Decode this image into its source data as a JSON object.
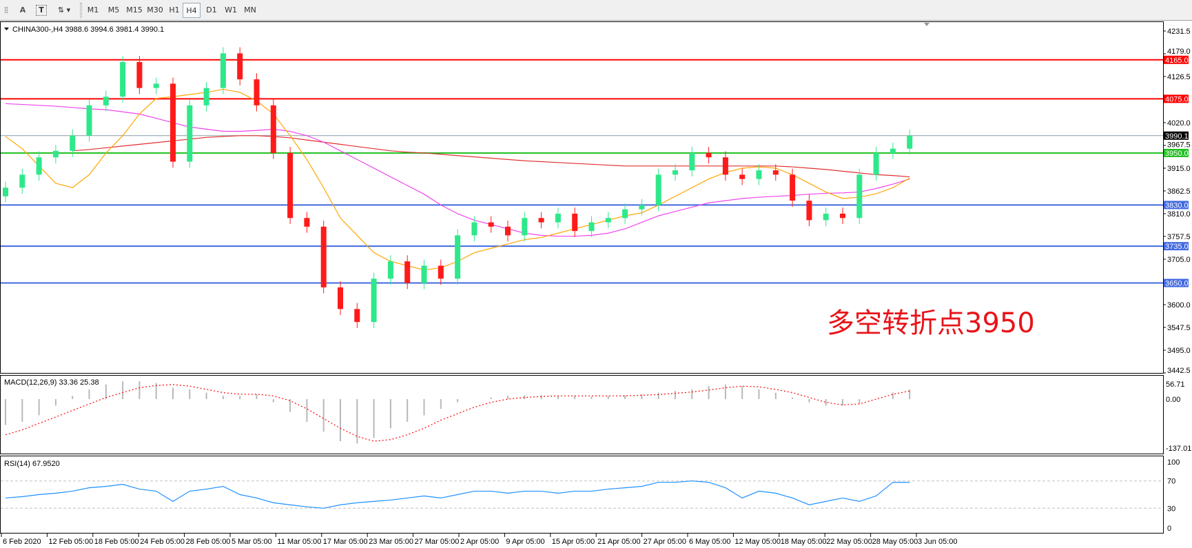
{
  "toolbar": {
    "icons": [
      "grid-icon",
      "text-icon",
      "text-label-icon",
      "arrows-icon"
    ],
    "text_tool": "A",
    "timeframes": [
      "M1",
      "M5",
      "M15",
      "M30",
      "H1",
      "H4",
      "D1",
      "W1",
      "MN"
    ],
    "active": "H4"
  },
  "chart_data": [
    {
      "type": "candlestick",
      "title": "CHINA300-,H4  3988.6 3994.6 3981.4 3990.1",
      "symbol": "CHINA300-",
      "timeframe": "H4",
      "last": {
        "open": 3988.6,
        "high": 3994.6,
        "low": 3981.4,
        "close": 3990.1
      },
      "ylim": [
        3442.5,
        4231.5
      ],
      "yticks": [
        "4231.5",
        "4179.0",
        "4126.5",
        "4020.0",
        "3967.5",
        "3915.0",
        "3862.5",
        "3810.0",
        "3757.5",
        "3705.0",
        "3600.0",
        "3547.5",
        "3495.0",
        "3442.5"
      ],
      "levels": [
        {
          "value": "4165.0",
          "color": "#ff0000"
        },
        {
          "value": "4075.0",
          "color": "#ff0000"
        },
        {
          "value": "3990.1",
          "color": "#000000",
          "line": "#8a9aa6"
        },
        {
          "value": "3950.0",
          "color": "#22c022"
        },
        {
          "value": "3830.0",
          "color": "#4169e1"
        },
        {
          "value": "3735.0",
          "color": "#4169e1"
        },
        {
          "value": "3650.0",
          "color": "#4169e1"
        }
      ],
      "colors": {
        "bull": "#2ee88a",
        "bear": "#ff1a1a",
        "ma_fast": "#ffa500",
        "ma_mid": "#ee44ee",
        "ma_slow": "#e03030"
      },
      "closes": [
        3870,
        3900,
        3940,
        3955,
        3990,
        4060,
        4080,
        4160,
        4100,
        4110,
        3930,
        4060,
        4100,
        4180,
        4120,
        4060,
        3950,
        3800,
        3780,
        3640,
        3590,
        3560,
        3660,
        3700,
        3650,
        3690,
        3660,
        3760,
        3790,
        3780,
        3760,
        3800,
        3790,
        3810,
        3770,
        3790,
        3800,
        3820,
        3830,
        3900,
        3910,
        3950,
        3940,
        3900,
        3890,
        3910,
        3900,
        3840,
        3795,
        3810,
        3800,
        3900,
        3950,
        3960,
        3990
      ],
      "ma_fast": [
        3988,
        3960,
        3920,
        3880,
        3870,
        3900,
        3950,
        3990,
        4040,
        4076,
        4080,
        4085,
        4090,
        4097,
        4090,
        4070,
        4040,
        3990,
        3935,
        3870,
        3800,
        3760,
        3720,
        3700,
        3690,
        3680,
        3685,
        3700,
        3720,
        3730,
        3740,
        3750,
        3755,
        3765,
        3775,
        3785,
        3795,
        3805,
        3812,
        3830,
        3850,
        3870,
        3890,
        3905,
        3915,
        3918,
        3915,
        3900,
        3880,
        3860,
        3845,
        3848,
        3856,
        3870,
        3892
      ],
      "ma_mid": [
        4064,
        4062,
        4060,
        4058,
        4055,
        4052,
        4050,
        4045,
        4040,
        4030,
        4020,
        4010,
        4005,
        4000,
        4000,
        4002,
        4005,
        4000,
        3990,
        3975,
        3955,
        3935,
        3915,
        3895,
        3875,
        3855,
        3830,
        3810,
        3795,
        3785,
        3775,
        3765,
        3760,
        3758,
        3758,
        3760,
        3765,
        3775,
        3790,
        3805,
        3815,
        3825,
        3835,
        3840,
        3845,
        3848,
        3850,
        3852,
        3855,
        3857,
        3858,
        3860,
        3868,
        3878,
        3890
      ],
      "ma_slow": [
        null,
        null,
        null,
        null,
        3955,
        3958,
        3962,
        3966,
        3970,
        3974,
        3978,
        3982,
        3986,
        3988,
        3990,
        3990,
        3988,
        3985,
        3980,
        3975,
        3970,
        3965,
        3960,
        3955,
        3952,
        3950,
        3947,
        3944,
        3941,
        3938,
        3935,
        3932,
        3930,
        3928,
        3926,
        3924,
        3922,
        3920,
        3920,
        3920,
        3920,
        3920,
        3920,
        3920,
        3920,
        3920,
        3920,
        3918,
        3915,
        3912,
        3908,
        3904,
        3900,
        3898,
        3895
      ],
      "xticks": [
        "6 Feb 2020",
        "12 Feb 05:00",
        "18 Feb 05:00",
        "24 Feb 05:00",
        "28 Feb 05:00",
        "5 Mar 05:00",
        "11 Mar 05:00",
        "17 Mar 05:00",
        "23 Mar 05:00",
        "27 Mar 05:00",
        "2 Apr 05:00",
        "9 Apr 05:00",
        "15 Apr 05:00",
        "21 Apr 05:00",
        "27 Apr 05:00",
        "6 May 05:00",
        "12 May 05:00",
        "18 May 05:00",
        "22 May 05:00",
        "28 May 05:00",
        "3 Jun 05:00"
      ],
      "annotation": "多空转折点3950"
    },
    {
      "type": "bar",
      "title": "MACD(12,26,9) 33.36 25.38",
      "yticks": [
        "56.71",
        "0.00",
        "-137.01"
      ],
      "histogram": [
        -80,
        -70,
        -50,
        -20,
        10,
        30,
        45,
        55,
        55,
        50,
        35,
        30,
        20,
        10,
        10,
        15,
        -10,
        -40,
        -70,
        -100,
        -130,
        -137,
        -120,
        -90,
        -70,
        -50,
        -30,
        -10,
        0,
        5,
        10,
        12,
        12,
        10,
        10,
        8,
        10,
        12,
        15,
        20,
        25,
        30,
        40,
        45,
        40,
        30,
        20,
        5,
        -10,
        -20,
        -20,
        -15,
        0,
        20,
        30
      ],
      "signal": [
        -110,
        -95,
        -75,
        -55,
        -35,
        -15,
        5,
        20,
        35,
        42,
        45,
        40,
        30,
        20,
        15,
        15,
        10,
        -5,
        -30,
        -60,
        -90,
        -115,
        -130,
        -125,
        -110,
        -90,
        -65,
        -45,
        -25,
        -10,
        0,
        5,
        8,
        10,
        10,
        10,
        10,
        10,
        12,
        14,
        18,
        22,
        28,
        35,
        40,
        38,
        30,
        20,
        5,
        -10,
        -18,
        -15,
        0,
        15,
        25
      ]
    },
    {
      "type": "line",
      "title": "RSI(14) 67.9520",
      "yticks": [
        "100",
        "70",
        "30",
        "0"
      ],
      "ylim": [
        0,
        100
      ],
      "values": [
        45,
        47,
        50,
        52,
        55,
        60,
        62,
        65,
        58,
        55,
        40,
        55,
        58,
        62,
        50,
        45,
        38,
        35,
        32,
        30,
        35,
        38,
        40,
        42,
        45,
        48,
        45,
        50,
        55,
        55,
        52,
        55,
        55,
        52,
        55,
        55,
        58,
        60,
        62,
        68,
        68,
        70,
        68,
        60,
        45,
        55,
        52,
        45,
        35,
        40,
        45,
        40,
        48,
        68,
        67.95
      ]
    }
  ]
}
